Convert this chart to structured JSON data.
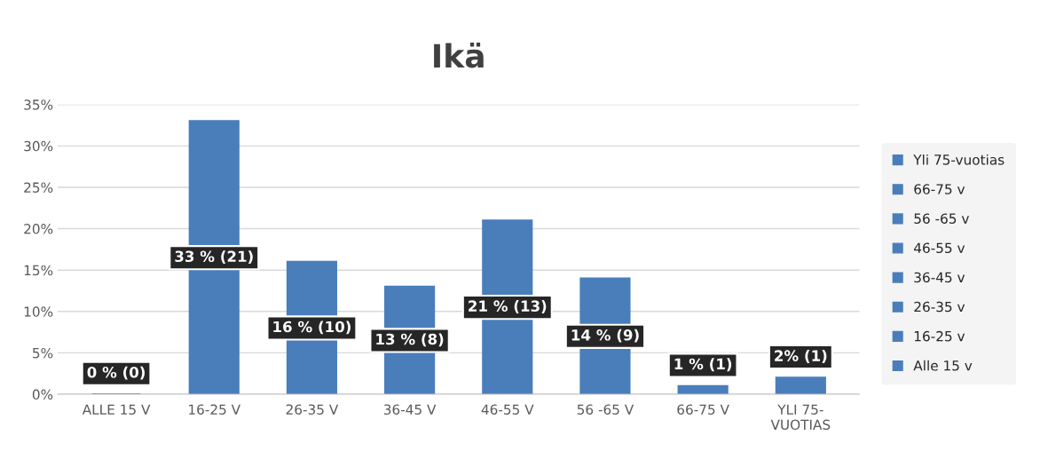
{
  "chart_data": {
    "type": "bar",
    "title": "Ikä",
    "stacked": true,
    "categories": [
      "ALLE 15 V",
      "16-25 V",
      "26-35 V",
      "36-45 V",
      "46-55 V",
      "56 -65 V",
      "66-75 V",
      "YLI 75-VUOTIAS"
    ],
    "series": [
      {
        "name": "Alle 15 v",
        "color": "#4a7ebb",
        "values": [
          0,
          null,
          null,
          null,
          null,
          null,
          null,
          null
        ],
        "value_labels": [
          "0 % (0)",
          null,
          null,
          null,
          null,
          null,
          null,
          null
        ]
      },
      {
        "name": "16-25 v",
        "color": "#4a7ebb",
        "values": [
          null,
          33,
          null,
          null,
          null,
          null,
          null,
          null
        ],
        "value_labels": [
          null,
          "33 % (21)",
          null,
          null,
          null,
          null,
          null,
          null
        ]
      },
      {
        "name": "26-35 v",
        "color": "#4a7ebb",
        "values": [
          null,
          null,
          16,
          null,
          null,
          null,
          null,
          null
        ],
        "value_labels": [
          null,
          null,
          "16 % (10)",
          null,
          null,
          null,
          null,
          null
        ]
      },
      {
        "name": "36-45 v",
        "color": "#4a7ebb",
        "values": [
          null,
          null,
          null,
          13,
          null,
          null,
          null,
          null
        ],
        "value_labels": [
          null,
          null,
          null,
          "13 % (8)",
          null,
          null,
          null,
          null
        ]
      },
      {
        "name": "46-55 v",
        "color": "#4a7ebb",
        "values": [
          null,
          null,
          null,
          null,
          21,
          null,
          null,
          null
        ],
        "value_labels": [
          null,
          null,
          null,
          null,
          "21 % (13)",
          null,
          null,
          null
        ]
      },
      {
        "name": "56 -65 v",
        "color": "#4a7ebb",
        "values": [
          null,
          null,
          null,
          null,
          null,
          14,
          null,
          null
        ],
        "value_labels": [
          null,
          null,
          null,
          null,
          null,
          "14 % (9)",
          null,
          null
        ]
      },
      {
        "name": "66-75 v",
        "color": "#4a7ebb",
        "values": [
          null,
          null,
          null,
          null,
          null,
          null,
          1,
          null
        ],
        "value_labels": [
          null,
          null,
          null,
          null,
          null,
          null,
          "1 % (1)",
          null
        ]
      },
      {
        "name": "Yli 75-vuotias",
        "color": "#4a7ebb",
        "values": [
          null,
          null,
          null,
          null,
          null,
          null,
          null,
          2
        ],
        "value_labels": [
          null,
          null,
          null,
          null,
          null,
          null,
          null,
          "2% (1)"
        ]
      }
    ],
    "ylim": [
      0,
      35
    ],
    "yticks": [
      {
        "value": 0,
        "label": "0%"
      },
      {
        "value": 5,
        "label": "5%"
      },
      {
        "value": 10,
        "label": "10%"
      },
      {
        "value": 15,
        "label": "15%"
      },
      {
        "value": 20,
        "label": "20%"
      },
      {
        "value": 25,
        "label": "25%"
      },
      {
        "value": 30,
        "label": "30%"
      },
      {
        "value": 35,
        "label": "35%"
      }
    ],
    "grid": "y",
    "legend": "right"
  }
}
